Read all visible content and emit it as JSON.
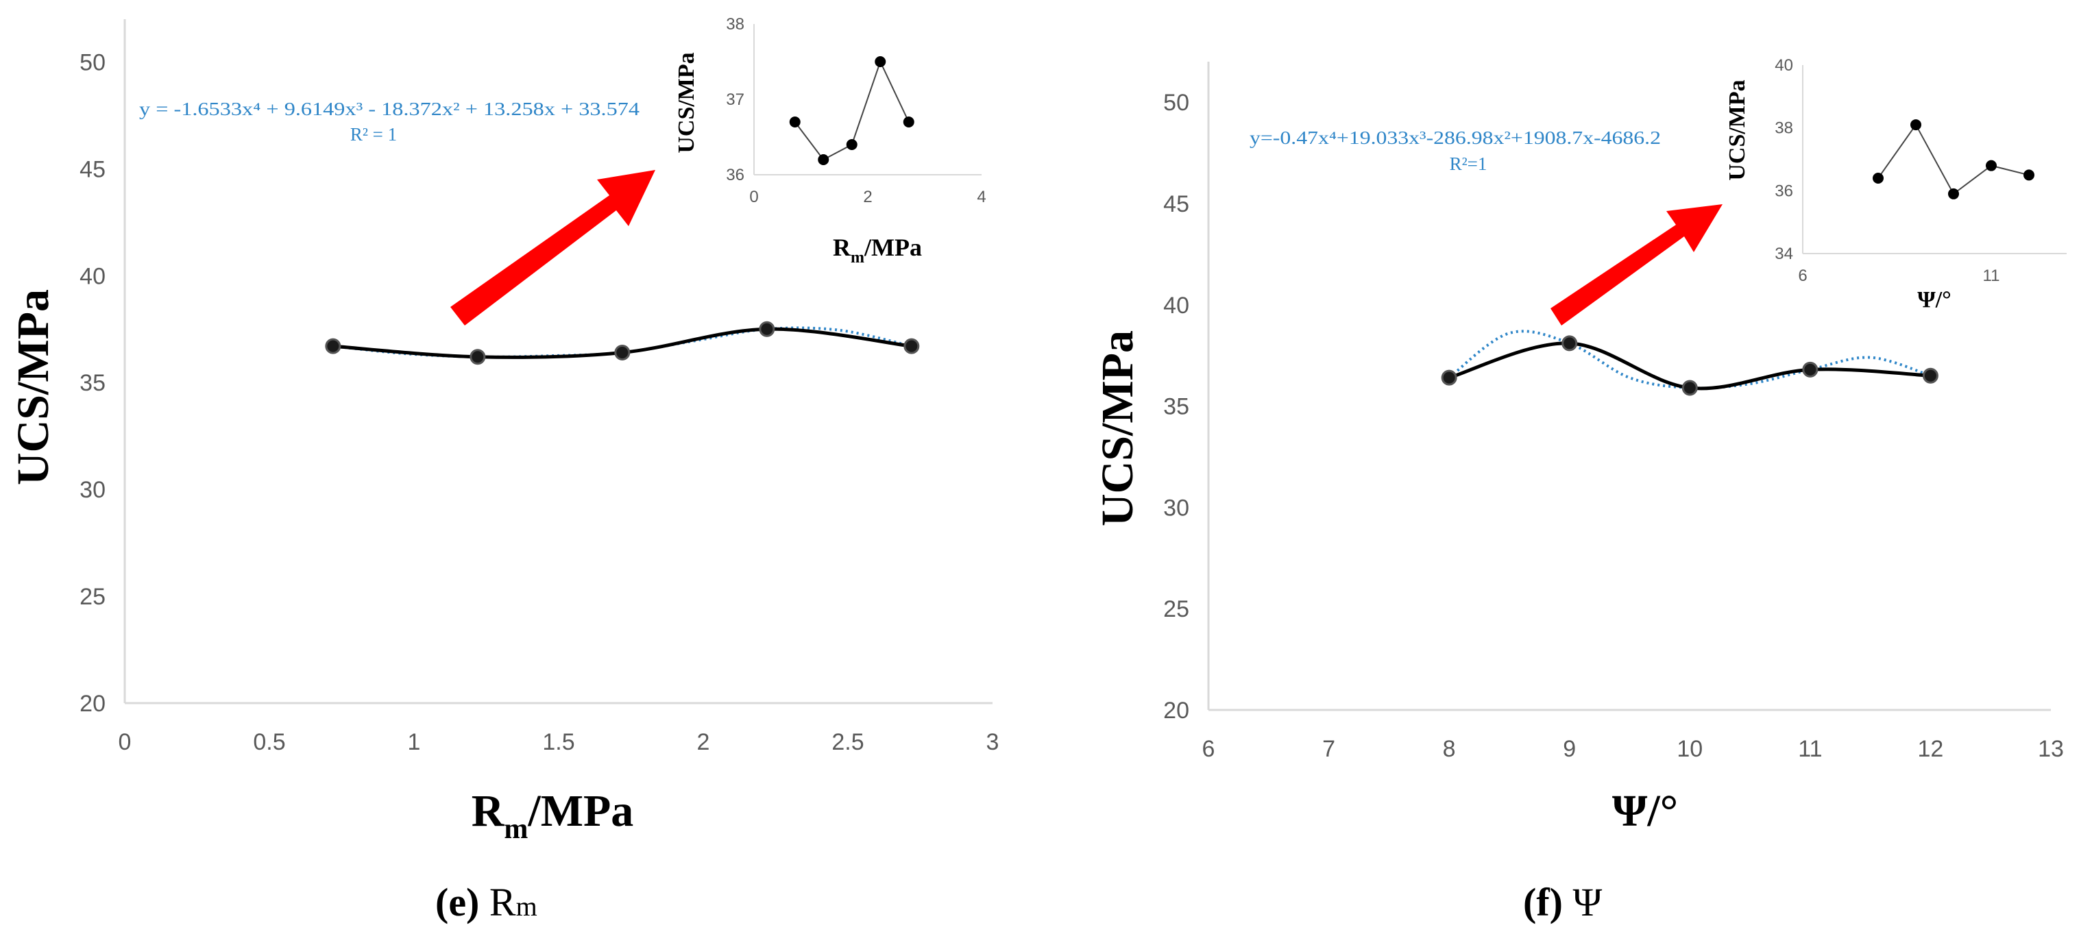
{
  "chart_data": [
    {
      "type": "line",
      "panel_caption": {
        "letter": "(e)",
        "var": "Rm"
      },
      "xlabel": "Rm/MPa",
      "ylabel": "UCS/MPa",
      "xticks": [
        0,
        0.5,
        1,
        1.5,
        2,
        2.5,
        3
      ],
      "yticks": [
        20,
        25,
        30,
        35,
        40,
        45,
        50
      ],
      "xlim": [
        0,
        3
      ],
      "ylim": [
        20,
        52
      ],
      "series": [
        {
          "name": "UCS",
          "x": [
            0.72,
            1.22,
            1.72,
            2.22,
            2.72
          ],
          "y": [
            36.7,
            36.2,
            36.4,
            37.5,
            36.7
          ]
        }
      ],
      "fit": {
        "equation": "y = -1.6533x⁴ + 9.6149x³ - 18.372x² + 13.258x + 33.574",
        "r2": "R² = 1",
        "x": [
          0.72,
          0.97,
          1.22,
          1.47,
          1.72,
          1.97,
          2.22,
          2.47,
          2.72
        ],
        "y": [
          36.7,
          36.35,
          36.2,
          36.25,
          36.4,
          36.95,
          37.5,
          37.45,
          36.7
        ]
      },
      "inset": {
        "xlabel": "Rm/MPa",
        "ylabel": "UCS/MPa",
        "xticks": [
          0,
          2,
          4
        ],
        "yticks": [
          36,
          37,
          38
        ],
        "xlim": [
          0,
          4
        ],
        "ylim": [
          36,
          38
        ],
        "x": [
          0.72,
          1.22,
          1.72,
          2.22,
          2.72
        ],
        "y": [
          36.7,
          36.2,
          36.4,
          37.5,
          36.7
        ]
      }
    },
    {
      "type": "line",
      "panel_caption": {
        "letter": "(f)",
        "var": "Ψ"
      },
      "xlabel": "Ψ/°",
      "ylabel": "UCS/MPa",
      "xticks": [
        6,
        7,
        8,
        9,
        10,
        11,
        12,
        13
      ],
      "yticks": [
        20,
        25,
        30,
        35,
        40,
        45,
        50
      ],
      "xlim": [
        6,
        13
      ],
      "ylim": [
        20,
        52
      ],
      "series": [
        {
          "name": "UCS",
          "x": [
            8,
            9,
            10,
            11,
            12
          ],
          "y": [
            36.4,
            38.1,
            35.9,
            36.8,
            36.5
          ]
        }
      ],
      "fit": {
        "equation": "y=-0.47x⁴+19.033x³-286.98x²+1908.7x-4686.2",
        "r2": "R²=1",
        "x": [
          8,
          8.5,
          9,
          9.5,
          10,
          10.5,
          11,
          11.5,
          12
        ],
        "y": [
          36.4,
          38.6,
          38.1,
          36.4,
          35.9,
          36.1,
          36.8,
          37.4,
          36.5
        ]
      },
      "inset": {
        "xlabel": "Ψ/°",
        "ylabel": "UCS/MPa",
        "xticks": [
          6,
          11
        ],
        "yticks": [
          34,
          36,
          38,
          40
        ],
        "xlim": [
          6,
          13
        ],
        "ylim": [
          34,
          40
        ],
        "x": [
          8,
          9,
          10,
          11,
          12
        ],
        "y": [
          36.4,
          38.1,
          35.9,
          36.8,
          36.5
        ]
      }
    }
  ],
  "colors": {
    "line": "#000000",
    "fit": "#2f86c8",
    "arrow": "#ff0000",
    "axis": "#d9d9d9",
    "tick": "#595959"
  }
}
